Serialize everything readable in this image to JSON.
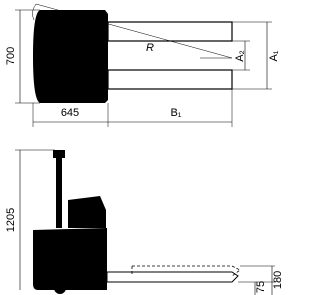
{
  "top_view": {
    "width_label": "700",
    "radius_label": "R",
    "inner_width_label": "A₂",
    "outer_width_label": "A₁",
    "body_length_label": "645",
    "fork_length_label": "B₁"
  },
  "side_view": {
    "height_label": "1205",
    "lowered_height_label": "75",
    "raised_height_label": "180"
  }
}
